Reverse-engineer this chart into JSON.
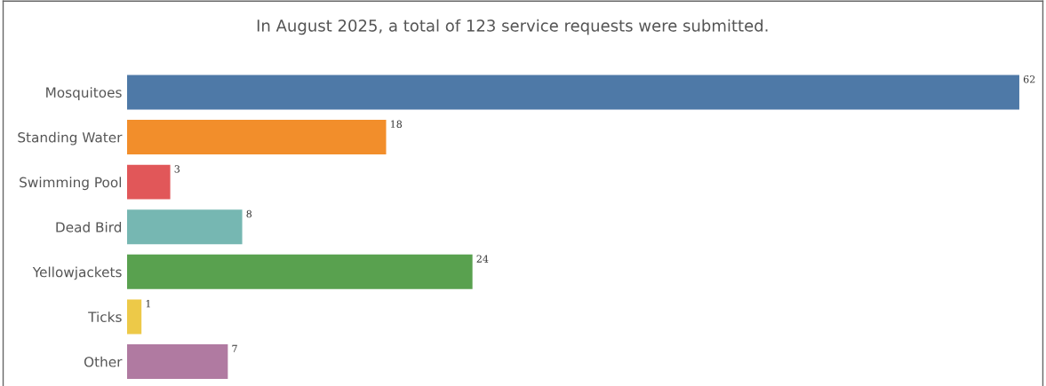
{
  "chart_data": {
    "type": "bar",
    "orientation": "horizontal",
    "title": "In August 2025, a total of 123 service requests were submitted.",
    "categories": [
      "Mosquitoes",
      "Standing Water",
      "Swimming Pool",
      "Dead Bird",
      "Yellowjackets",
      "Ticks",
      "Other"
    ],
    "values": [
      62,
      18,
      3,
      8,
      24,
      1,
      7
    ],
    "colors": [
      "#4e79a7",
      "#f28e2b",
      "#e15759",
      "#76b7b2",
      "#59a14f",
      "#edc948",
      "#b07aa1"
    ],
    "data_labels": true,
    "grid": false,
    "legend": false
  }
}
